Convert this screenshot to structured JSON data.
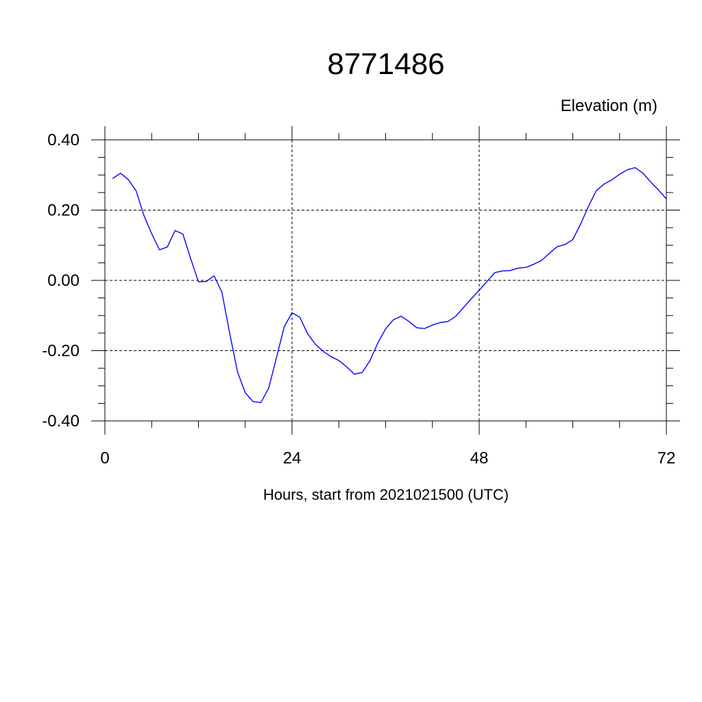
{
  "chart_data": {
    "type": "line",
    "title": "8771486",
    "ylabel": "Elevation (m)",
    "xlabel": "Hours, start from 2021021500 (UTC)",
    "xlim": [
      0,
      72
    ],
    "ylim": [
      -0.4,
      0.4
    ],
    "x_ticks": [
      {
        "value": 0,
        "label": "0"
      },
      {
        "value": 24,
        "label": "24"
      },
      {
        "value": 48,
        "label": "48"
      },
      {
        "value": 72,
        "label": "72"
      }
    ],
    "y_ticks": [
      {
        "value": 0.4,
        "label": "0.40"
      },
      {
        "value": 0.2,
        "label": "0.20"
      },
      {
        "value": 0.0,
        "label": "0.00"
      },
      {
        "value": -0.2,
        "label": "-0.20"
      },
      {
        "value": -0.4,
        "label": "-0.40"
      }
    ],
    "grid": true,
    "series_color": "#0000ff",
    "series": [
      {
        "x": [
          1,
          2,
          3,
          4,
          5,
          6,
          7,
          8,
          9,
          10,
          11,
          12,
          13,
          14,
          15,
          16,
          17,
          18,
          19,
          20,
          21,
          22,
          23,
          24,
          25,
          26,
          27,
          28,
          29,
          30,
          31,
          32,
          33,
          34,
          35,
          36,
          37,
          38,
          39,
          40,
          41,
          42,
          43,
          44,
          45,
          46,
          47,
          48,
          49,
          50,
          51,
          52,
          53,
          54,
          55,
          56,
          57,
          58,
          59,
          60,
          61,
          62,
          63,
          64,
          65,
          66,
          67,
          68,
          69,
          70,
          71,
          72
        ],
        "values": [
          0.29,
          0.305,
          0.287,
          0.255,
          0.185,
          0.133,
          0.087,
          0.095,
          0.142,
          0.132,
          0.062,
          -0.004,
          -0.003,
          0.013,
          -0.033,
          -0.15,
          -0.26,
          -0.32,
          -0.345,
          -0.348,
          -0.307,
          -0.22,
          -0.132,
          -0.092,
          -0.105,
          -0.152,
          -0.182,
          -0.202,
          -0.217,
          -0.228,
          -0.246,
          -0.267,
          -0.262,
          -0.228,
          -0.178,
          -0.138,
          -0.112,
          -0.102,
          -0.117,
          -0.135,
          -0.137,
          -0.127,
          -0.12,
          -0.117,
          -0.102,
          -0.077,
          -0.052,
          -0.028,
          -0.003,
          0.022,
          0.027,
          0.028,
          0.035,
          0.037,
          0.046,
          0.057,
          0.077,
          0.096,
          0.102,
          0.116,
          0.16,
          0.21,
          0.255,
          0.274,
          0.286,
          0.302,
          0.315,
          0.321,
          0.305,
          0.28,
          0.257,
          0.232
        ]
      }
    ]
  }
}
